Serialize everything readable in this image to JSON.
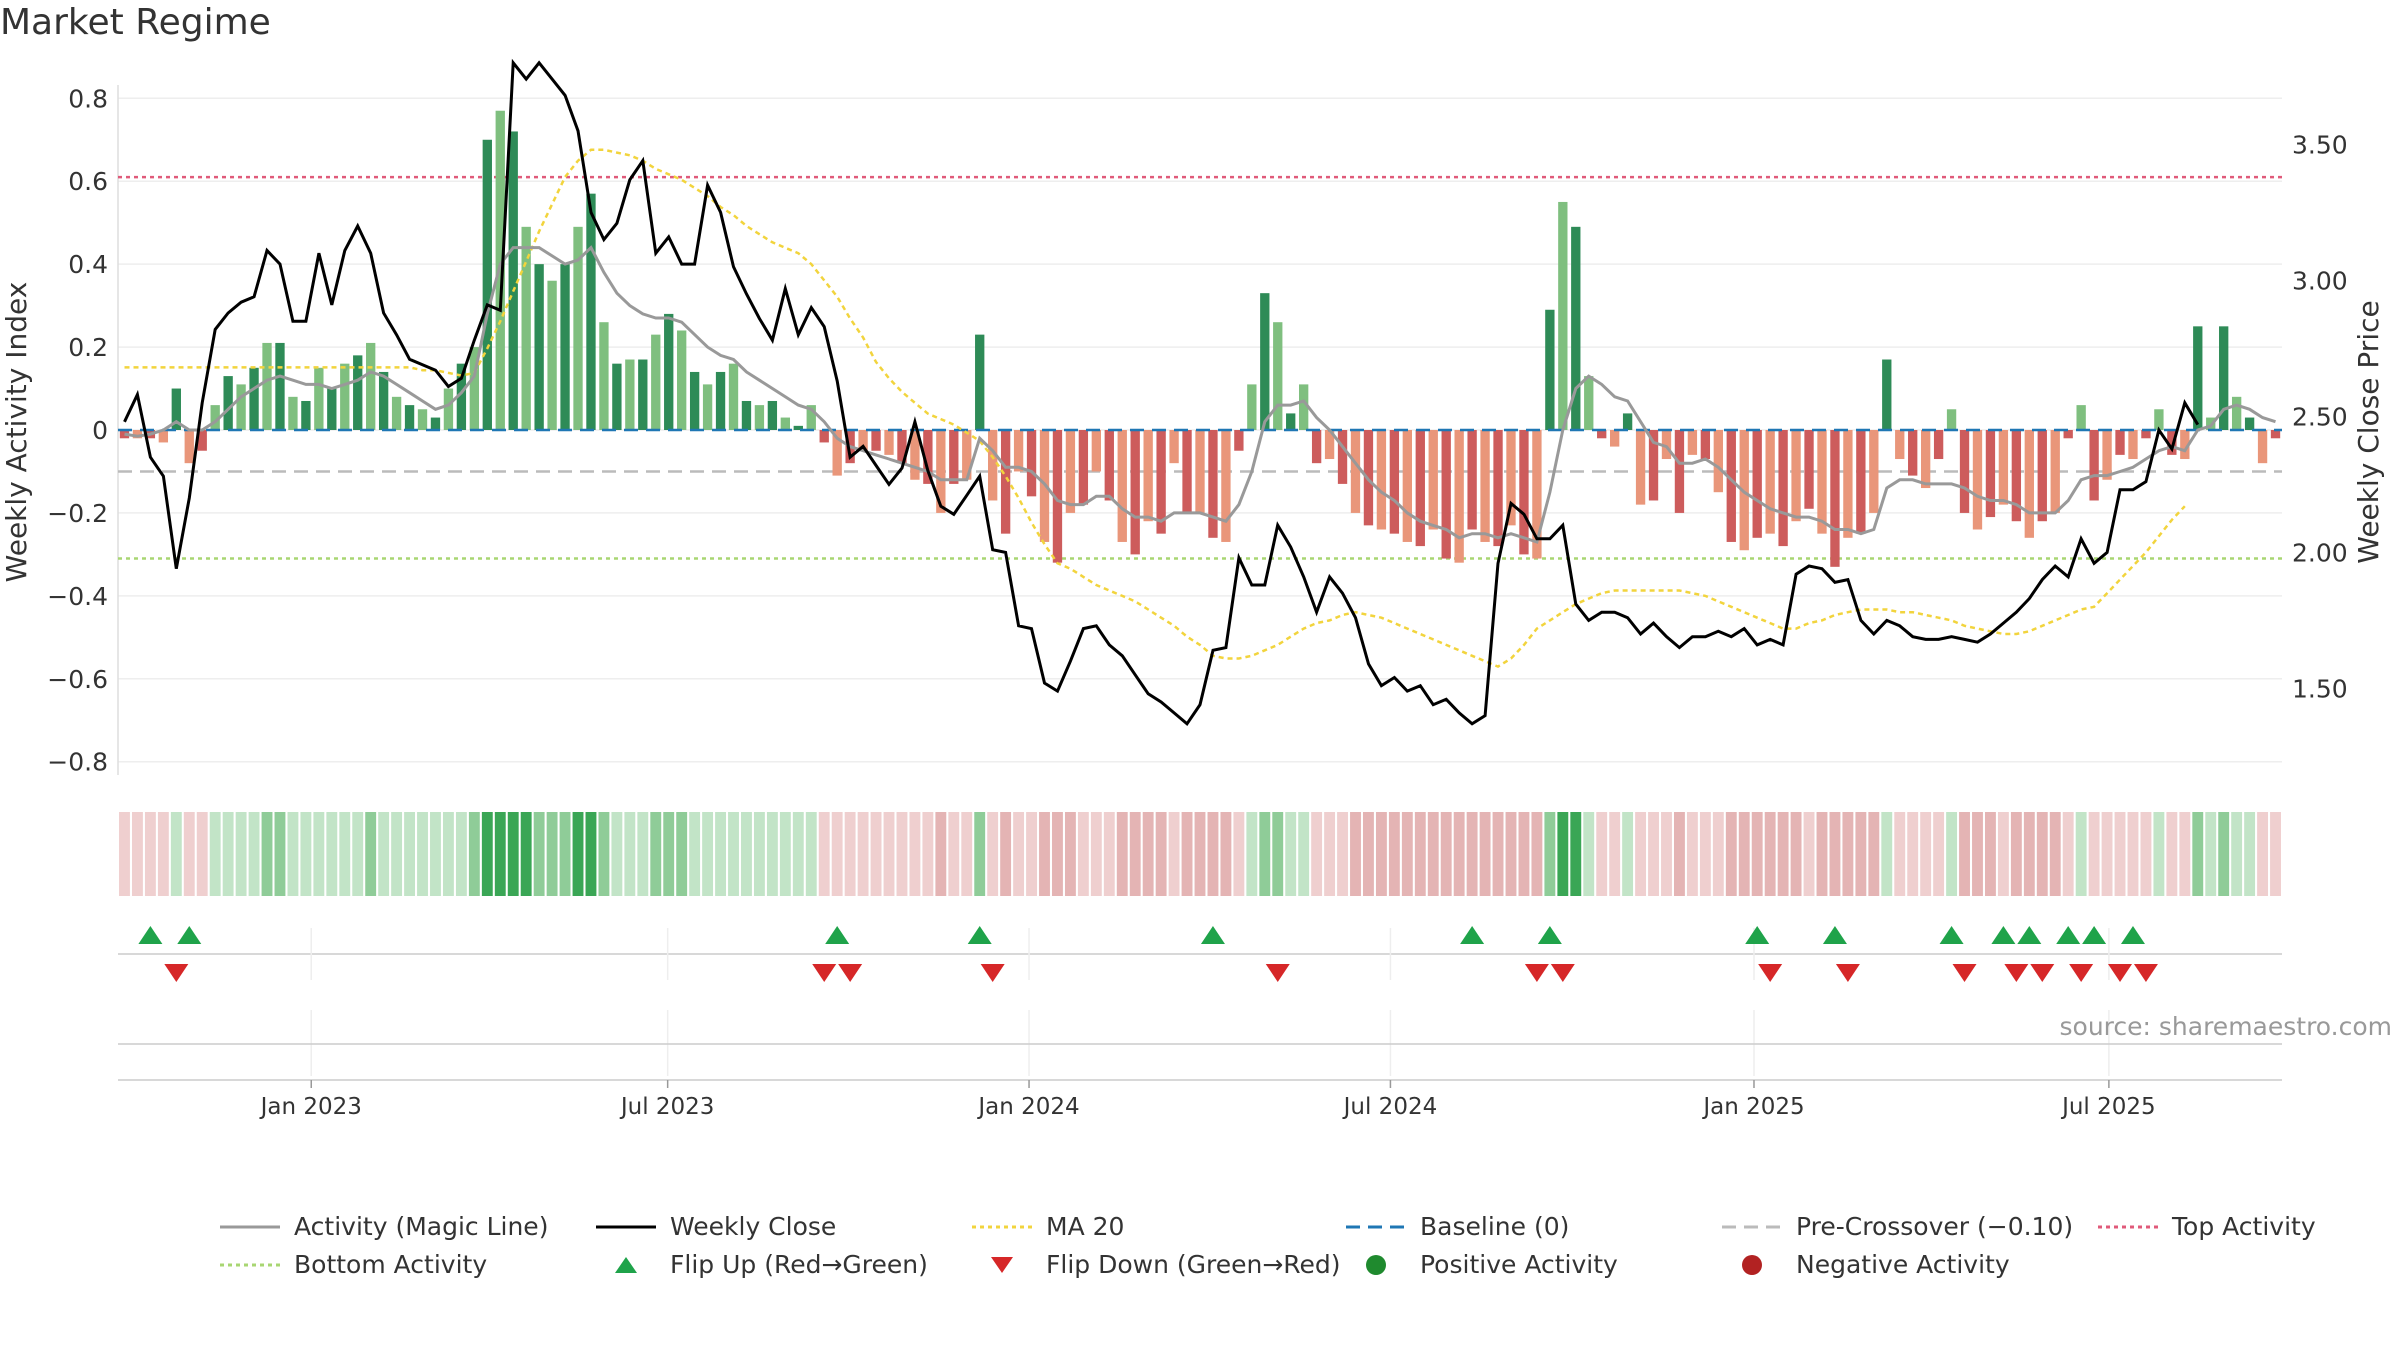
{
  "title": "Market Regime",
  "source": "source: sharemaestro.com",
  "chart_data": {
    "type": "bar",
    "y_left_label": "Weekly Activity Index",
    "y_right_label": "Weekly Close Price",
    "y_left_ticks": [
      "0.8",
      "0.6",
      "0.4",
      "0.2",
      "0",
      "−0.2",
      "−0.4",
      "−0.6",
      "−0.8"
    ],
    "y_right_ticks": [
      "3.50",
      "3.00",
      "2.50",
      "2.00",
      "1.50"
    ],
    "x_ticks": [
      "Jan 2023",
      "Jul 2023",
      "Jan 2024",
      "Jul 2024",
      "Jan 2025",
      "Jul 2025"
    ],
    "ylim_left": [
      -0.82,
      0.82
    ],
    "ylim_right": [
      1.2,
      3.7
    ],
    "levels": {
      "top": 0.61,
      "bottom": -0.31,
      "pre_crossover": -0.1,
      "baseline": 0
    },
    "activity": [
      -0.02,
      -0.02,
      -0.02,
      -0.03,
      0.1,
      -0.08,
      -0.05,
      0.06,
      0.13,
      0.11,
      0.15,
      0.21,
      0.21,
      0.08,
      0.07,
      0.15,
      0.1,
      0.16,
      0.18,
      0.21,
      0.14,
      0.08,
      0.06,
      0.05,
      0.03,
      0.1,
      0.16,
      0.2,
      0.7,
      0.77,
      0.72,
      0.49,
      0.4,
      0.36,
      0.4,
      0.49,
      0.57,
      0.26,
      0.16,
      0.17,
      0.17,
      0.23,
      0.28,
      0.24,
      0.14,
      0.11,
      0.14,
      0.16,
      0.07,
      0.06,
      0.07,
      0.03,
      0.01,
      0.06,
      -0.03,
      -0.11,
      -0.08,
      -0.05,
      -0.05,
      -0.06,
      -0.08,
      -0.12,
      -0.13,
      -0.2,
      -0.13,
      -0.12,
      0.23,
      -0.17,
      -0.25,
      -0.1,
      -0.16,
      -0.27,
      -0.32,
      -0.2,
      -0.18,
      -0.1,
      -0.17,
      -0.27,
      -0.3,
      -0.22,
      -0.25,
      -0.08,
      -0.2,
      -0.2,
      -0.26,
      -0.27,
      -0.05,
      0.11,
      0.33,
      0.26,
      0.04,
      0.11,
      -0.08,
      -0.07,
      -0.13,
      -0.2,
      -0.23,
      -0.24,
      -0.25,
      -0.27,
      -0.28,
      -0.24,
      -0.31,
      -0.32,
      -0.24,
      -0.27,
      -0.28,
      -0.23,
      -0.3,
      -0.31,
      0.29,
      0.55,
      0.49,
      0.13,
      -0.02,
      -0.04,
      0.04,
      -0.18,
      -0.17,
      -0.07,
      -0.2,
      -0.06,
      -0.07,
      -0.15,
      -0.27,
      -0.29,
      -0.26,
      -0.25,
      -0.28,
      -0.22,
      -0.19,
      -0.25,
      -0.33,
      -0.26,
      -0.25,
      -0.2,
      0.17,
      -0.07,
      -0.11,
      -0.14,
      -0.07,
      0.05,
      -0.2,
      -0.24,
      -0.21,
      -0.18,
      -0.22,
      -0.26,
      -0.22,
      -0.2,
      -0.02,
      0.06,
      -0.17,
      -0.12,
      -0.06,
      -0.07,
      -0.02,
      0.05,
      -0.06,
      -0.07,
      0.25,
      0.03,
      0.25,
      0.08,
      0.03,
      -0.08,
      -0.02
    ],
    "magic_line": [
      -0.01,
      -0.015,
      -0.01,
      0.0,
      0.02,
      0.0,
      0.0,
      0.02,
      0.05,
      0.08,
      0.1,
      0.12,
      0.13,
      0.12,
      0.11,
      0.11,
      0.1,
      0.11,
      0.12,
      0.14,
      0.13,
      0.11,
      0.09,
      0.07,
      0.05,
      0.06,
      0.09,
      0.13,
      0.28,
      0.4,
      0.44,
      0.44,
      0.44,
      0.42,
      0.4,
      0.41,
      0.44,
      0.38,
      0.33,
      0.3,
      0.28,
      0.27,
      0.27,
      0.26,
      0.23,
      0.2,
      0.18,
      0.17,
      0.14,
      0.12,
      0.1,
      0.08,
      0.06,
      0.05,
      0.02,
      -0.02,
      -0.04,
      -0.05,
      -0.06,
      -0.07,
      -0.08,
      -0.09,
      -0.1,
      -0.12,
      -0.12,
      -0.12,
      -0.02,
      -0.05,
      -0.09,
      -0.09,
      -0.1,
      -0.13,
      -0.17,
      -0.18,
      -0.18,
      -0.16,
      -0.16,
      -0.19,
      -0.21,
      -0.21,
      -0.22,
      -0.2,
      -0.2,
      -0.2,
      -0.21,
      -0.22,
      -0.18,
      -0.1,
      0.02,
      0.06,
      0.06,
      0.07,
      0.03,
      0.0,
      -0.04,
      -0.08,
      -0.12,
      -0.15,
      -0.17,
      -0.2,
      -0.22,
      -0.23,
      -0.24,
      -0.26,
      -0.25,
      -0.25,
      -0.26,
      -0.25,
      -0.26,
      -0.27,
      -0.15,
      0.0,
      0.1,
      0.13,
      0.11,
      0.08,
      0.07,
      0.02,
      -0.03,
      -0.04,
      -0.08,
      -0.08,
      -0.07,
      -0.09,
      -0.12,
      -0.15,
      -0.17,
      -0.19,
      -0.2,
      -0.21,
      -0.21,
      -0.22,
      -0.24,
      -0.24,
      -0.25,
      -0.24,
      -0.14,
      -0.12,
      -0.12,
      -0.13,
      -0.13,
      -0.13,
      -0.14,
      -0.16,
      -0.17,
      -0.17,
      -0.18,
      -0.2,
      -0.2,
      -0.2,
      -0.17,
      -0.12,
      -0.11,
      -0.11,
      -0.1,
      -0.09,
      -0.07,
      -0.05,
      -0.04,
      -0.05,
      0.0,
      0.01,
      0.05,
      0.06,
      0.05,
      0.03,
      0.02
    ],
    "close": [
      2.48,
      2.58,
      2.35,
      2.28,
      1.94,
      2.2,
      2.55,
      2.82,
      2.88,
      2.92,
      2.94,
      3.11,
      3.06,
      2.85,
      2.85,
      3.1,
      2.91,
      3.11,
      3.2,
      3.1,
      2.88,
      2.8,
      2.71,
      2.69,
      2.67,
      2.61,
      2.64,
      2.78,
      2.91,
      2.89,
      3.8,
      3.74,
      3.8,
      3.74,
      3.68,
      3.55,
      3.25,
      3.15,
      3.21,
      3.37,
      3.44,
      3.1,
      3.16,
      3.06,
      3.06,
      3.35,
      3.25,
      3.05,
      2.95,
      2.86,
      2.78,
      2.97,
      2.8,
      2.9,
      2.83,
      2.63,
      2.35,
      2.39,
      2.32,
      2.25,
      2.31,
      2.48,
      2.3,
      2.17,
      2.14,
      2.21,
      2.28,
      2.01,
      2.0,
      1.73,
      1.72,
      1.52,
      1.49,
      1.6,
      1.72,
      1.73,
      1.66,
      1.62,
      1.55,
      1.48,
      1.45,
      1.41,
      1.37,
      1.44,
      1.64,
      1.65,
      1.98,
      1.88,
      1.88,
      2.1,
      2.02,
      1.91,
      1.78,
      1.91,
      1.85,
      1.76,
      1.59,
      1.51,
      1.54,
      1.49,
      1.51,
      1.44,
      1.46,
      1.41,
      1.37,
      1.4,
      1.96,
      2.18,
      2.14,
      2.05,
      2.05,
      2.1,
      1.81,
      1.75,
      1.78,
      1.78,
      1.76,
      1.7,
      1.74,
      1.69,
      1.65,
      1.69,
      1.69,
      1.71,
      1.69,
      1.72,
      1.66,
      1.68,
      1.66,
      1.92,
      1.95,
      1.94,
      1.89,
      1.9,
      1.75,
      1.7,
      1.75,
      1.73,
      1.69,
      1.68,
      1.68,
      1.69,
      1.68,
      1.67,
      1.7,
      1.74,
      1.78,
      1.83,
      1.9,
      1.95,
      1.91,
      2.05,
      1.96,
      2.0,
      2.23,
      2.23,
      2.26,
      2.45,
      2.38,
      2.55,
      2.47
    ],
    "ma20": [
      2.68,
      2.68,
      2.68,
      2.68,
      2.68,
      2.68,
      2.68,
      2.68,
      2.68,
      2.68,
      2.68,
      2.68,
      2.68,
      2.68,
      2.68,
      2.68,
      2.68,
      2.68,
      2.68,
      2.68,
      2.68,
      2.68,
      2.68,
      2.67,
      2.67,
      2.66,
      2.65,
      2.66,
      2.75,
      2.85,
      2.96,
      3.07,
      3.18,
      3.28,
      3.38,
      3.44,
      3.48,
      3.48,
      3.47,
      3.46,
      3.44,
      3.41,
      3.39,
      3.37,
      3.34,
      3.31,
      3.27,
      3.24,
      3.2,
      3.17,
      3.14,
      3.12,
      3.1,
      3.06,
      3.0,
      2.94,
      2.86,
      2.79,
      2.7,
      2.64,
      2.59,
      2.55,
      2.51,
      2.49,
      2.47,
      2.44,
      2.41,
      2.35,
      2.28,
      2.2,
      2.11,
      2.03,
      1.96,
      1.94,
      1.91,
      1.88,
      1.86,
      1.84,
      1.82,
      1.79,
      1.76,
      1.73,
      1.69,
      1.66,
      1.62,
      1.61,
      1.61,
      1.62,
      1.64,
      1.66,
      1.69,
      1.72,
      1.74,
      1.75,
      1.77,
      1.78,
      1.77,
      1.76,
      1.74,
      1.72,
      1.7,
      1.68,
      1.66,
      1.64,
      1.62,
      1.6,
      1.58,
      1.61,
      1.66,
      1.72,
      1.75,
      1.78,
      1.81,
      1.83,
      1.85,
      1.86,
      1.86,
      1.86,
      1.86,
      1.86,
      1.86,
      1.85,
      1.84,
      1.82,
      1.8,
      1.78,
      1.76,
      1.74,
      1.72,
      1.72,
      1.74,
      1.75,
      1.77,
      1.78,
      1.79,
      1.79,
      1.79,
      1.78,
      1.78,
      1.77,
      1.76,
      1.75,
      1.73,
      1.72,
      1.71,
      1.7,
      1.7,
      1.71,
      1.73,
      1.75,
      1.77,
      1.79,
      1.8,
      1.85,
      1.9,
      1.95,
      2.0,
      2.06,
      2.12,
      2.17
    ],
    "flip_up": [
      2,
      5,
      55,
      66,
      84,
      104,
      110,
      126,
      132,
      141,
      145,
      147,
      150,
      152,
      155
    ],
    "flip_down": [
      4,
      54,
      56,
      67,
      89,
      109,
      111,
      127,
      133,
      142,
      146,
      148,
      151,
      154,
      156
    ],
    "legend": [
      "Activity (Magic Line)",
      "Weekly Close",
      "MA 20",
      "Baseline (0)",
      "Pre-Crossover (−0.10)",
      "Top Activity",
      "Bottom Activity",
      "Flip Up (Red→Green)",
      "Flip Down (Green→Red)",
      "Positive Activity",
      "Negative Activity"
    ]
  },
  "colors": {
    "pos_strong": "#2e8b57",
    "pos_light": "#7fbf7f",
    "neg_strong": "#cd5c5c",
    "neg_light": "#e9967a",
    "close": "#000000",
    "magic": "#999999",
    "ma20": "#f2d43d",
    "baseline": "#1f77b4",
    "pre": "#bbbbbb",
    "top": "#e05a7a",
    "bottom": "#a8d672",
    "flip_up": "#1fa34a",
    "flip_down": "#d62728",
    "pos_dot": "#1f8a2e",
    "neg_dot": "#b22222"
  }
}
